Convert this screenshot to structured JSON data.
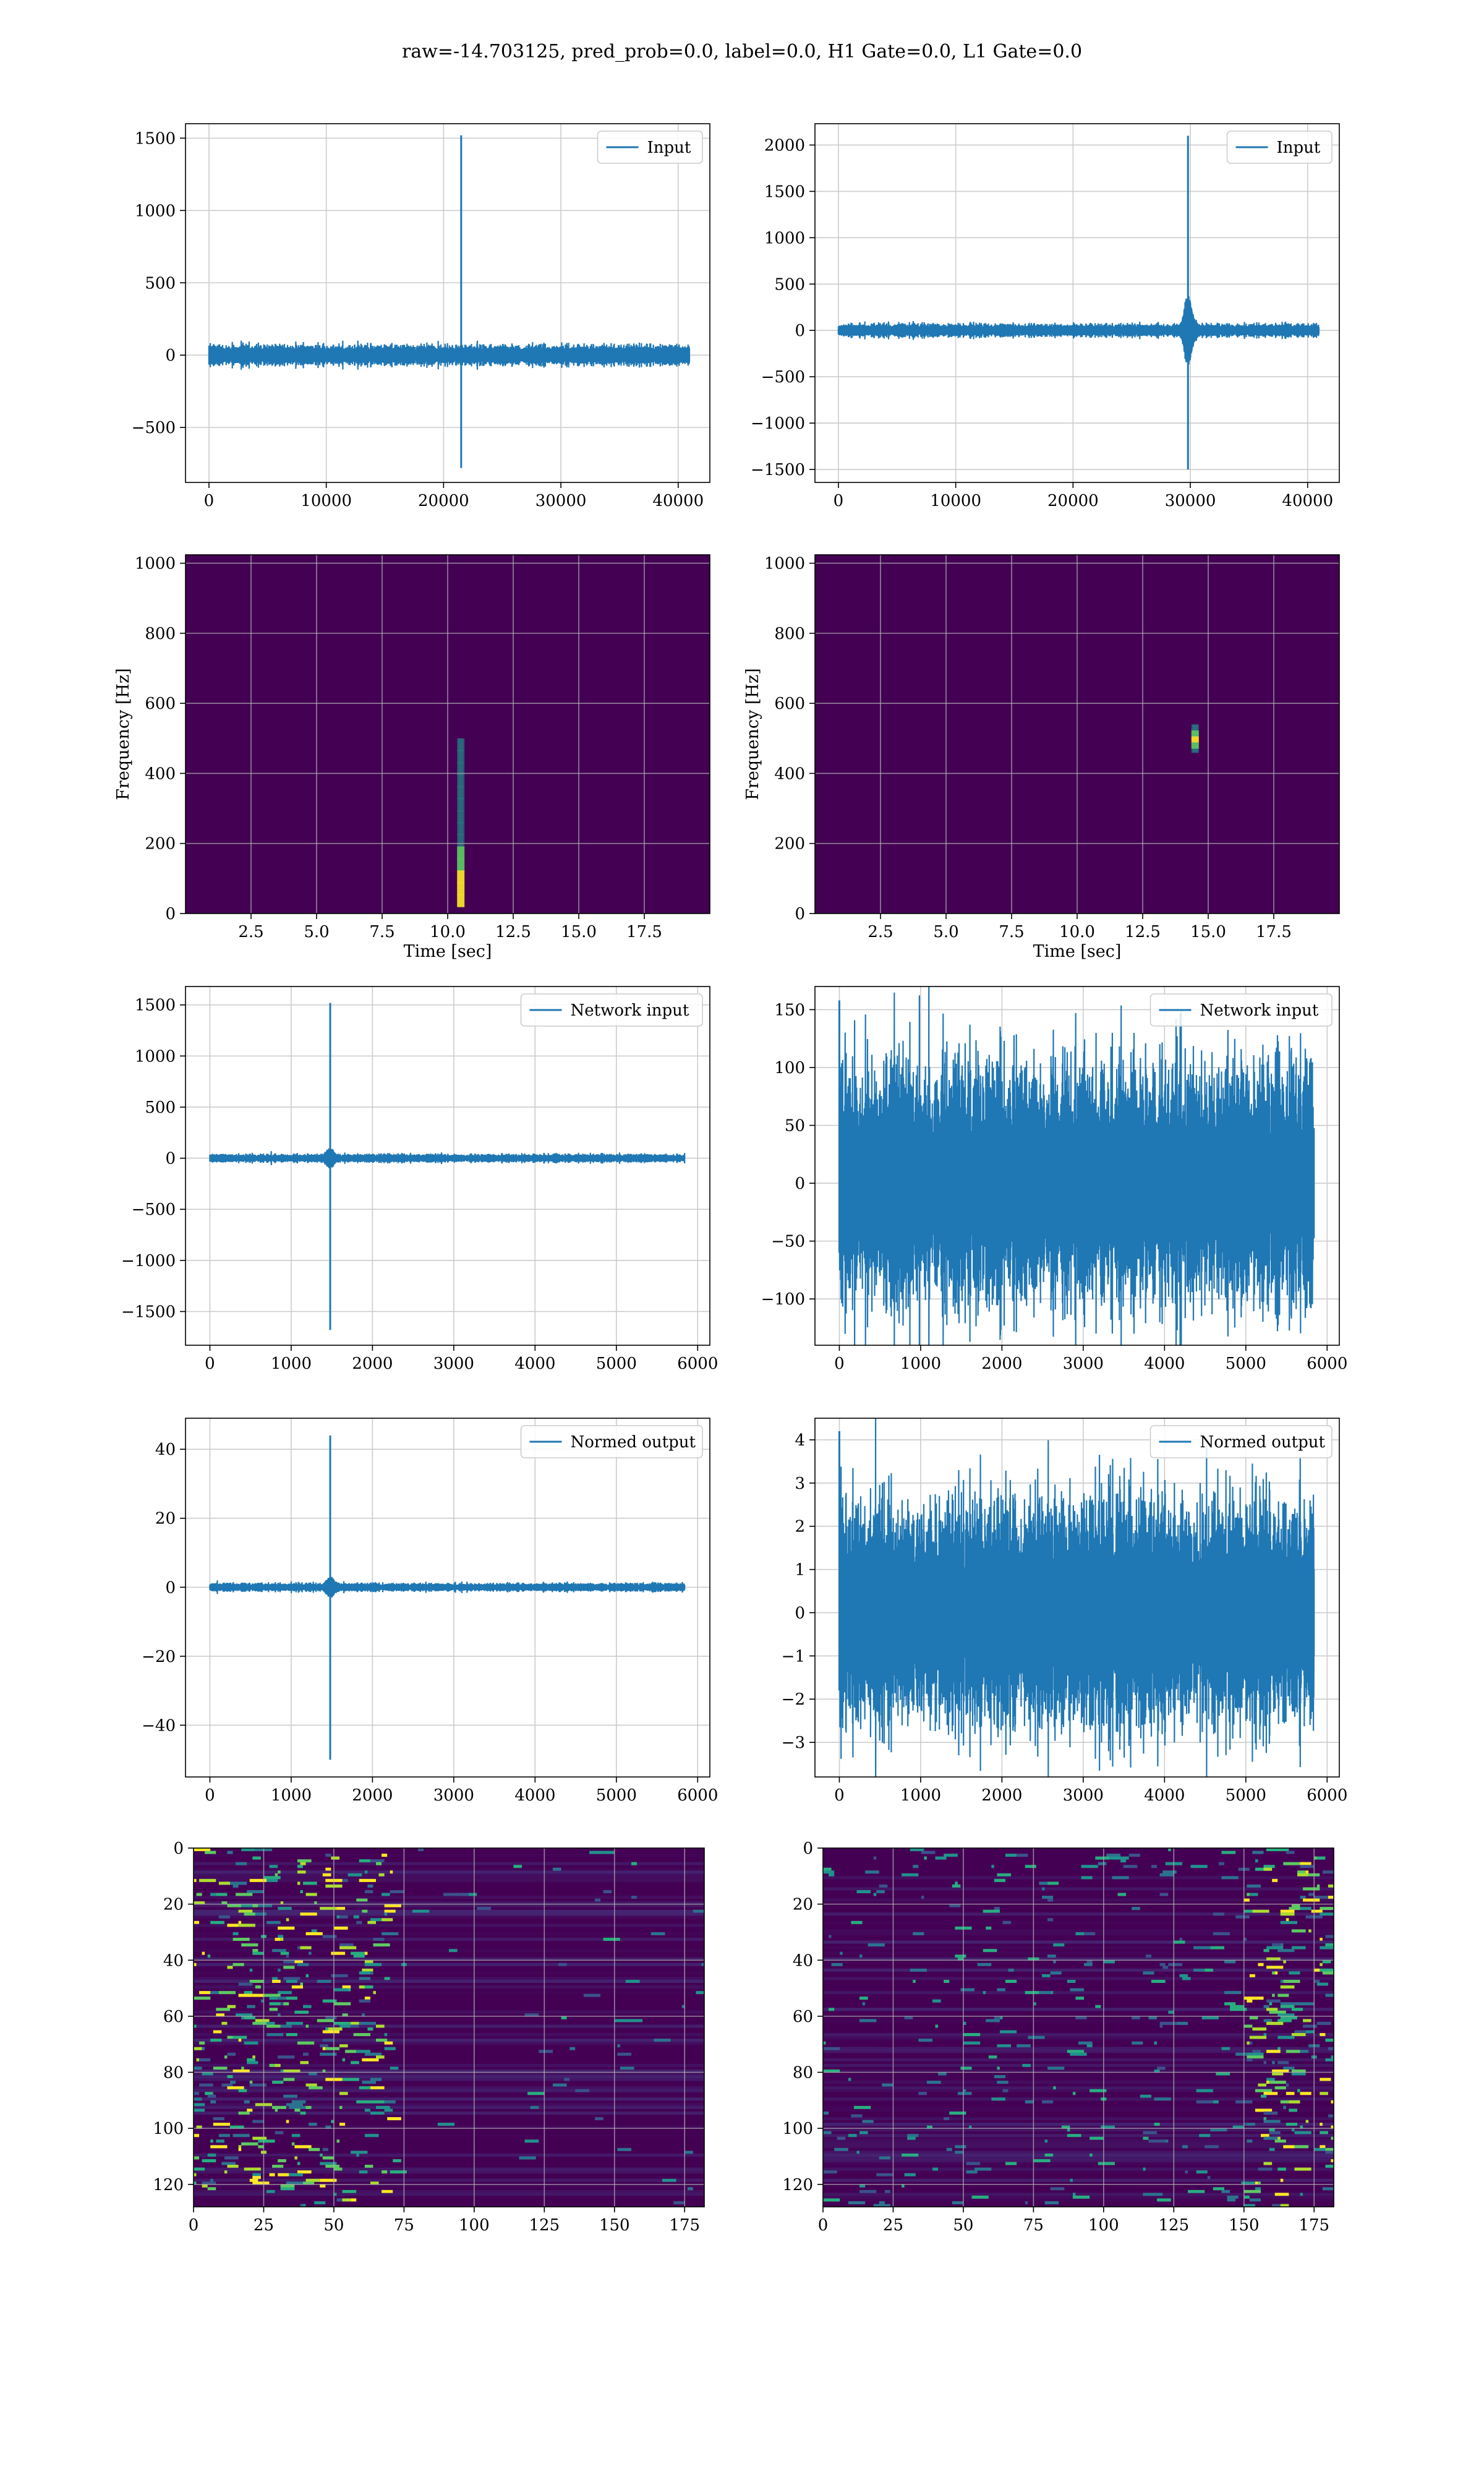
{
  "suptitle": "raw=-14.703125, pred_prob=0.0, label=0.0, H1 Gate=0.0, L1 Gate=0.0",
  "colors": {
    "line": "#1f77b4",
    "grid": "#cccccc",
    "viridis_bg": "#440154",
    "viridis_mid": "#21918c",
    "viridis_hi": "#5ec962",
    "viridis_top": "#fde725"
  },
  "chart_data": [
    {
      "id": "input-h1",
      "type": "line",
      "legend": "Input",
      "legend_loc": "upper right",
      "xlim": [
        -2000,
        42700
      ],
      "ylim": [
        -880,
        1600
      ],
      "xticks": [
        0,
        10000,
        20000,
        30000,
        40000
      ],
      "xticklabels": [
        "0",
        "10000",
        "20000",
        "30000",
        "40000"
      ],
      "yticks": [
        -500,
        0,
        500,
        1000,
        1500
      ],
      "yticklabels": [
        "−500",
        "0",
        "500",
        "1000",
        "1500"
      ],
      "xlabel": "",
      "ylabel": "",
      "signal": {
        "n": 40960,
        "noise": 35,
        "spike_x": 21500,
        "spike_max": 1520,
        "spike_min": -780,
        "bump": 0
      }
    },
    {
      "id": "input-l1",
      "type": "line",
      "legend": "Input",
      "legend_loc": "upper right",
      "xlim": [
        -2000,
        42700
      ],
      "ylim": [
        -1640,
        2230
      ],
      "xticks": [
        0,
        10000,
        20000,
        30000,
        40000
      ],
      "xticklabels": [
        "0",
        "10000",
        "20000",
        "30000",
        "40000"
      ],
      "yticks": [
        -1500,
        -1000,
        -500,
        0,
        500,
        1000,
        1500,
        2000
      ],
      "yticklabels": [
        "−1500",
        "−1000",
        "−500",
        "0",
        "500",
        "1000",
        "1500",
        "2000"
      ],
      "xlabel": "",
      "ylabel": "",
      "signal": {
        "n": 40960,
        "noise": 35,
        "spike_x": 29800,
        "spike_max": 2100,
        "spike_min": -1500,
        "bump": 300
      }
    },
    {
      "id": "spectrogram-h1",
      "type": "heatmap",
      "xlim": [
        0,
        20
      ],
      "ylim": [
        0,
        1024
      ],
      "xticks": [
        2.5,
        5,
        7.5,
        10,
        12.5,
        15,
        17.5
      ],
      "xticklabels": [
        "2.5",
        "5.0",
        "7.5",
        "10.0",
        "12.5",
        "15.0",
        "17.5"
      ],
      "yticks": [
        0,
        200,
        400,
        600,
        800,
        1000
      ],
      "yticklabels": [
        "0",
        "200",
        "400",
        "600",
        "800",
        "1000"
      ],
      "xlabel": "Time [sec]",
      "ylabel": "Frequency [Hz]",
      "feature": {
        "t": 10.5,
        "f_low": 20,
        "f_high": 500,
        "peak_f": 70
      }
    },
    {
      "id": "spectrogram-l1",
      "type": "heatmap",
      "xlim": [
        0,
        20
      ],
      "ylim": [
        0,
        1024
      ],
      "xticks": [
        2.5,
        5,
        7.5,
        10,
        12.5,
        15,
        17.5
      ],
      "xticklabels": [
        "2.5",
        "5.0",
        "7.5",
        "10.0",
        "12.5",
        "15.0",
        "17.5"
      ],
      "yticks": [
        0,
        200,
        400,
        600,
        800,
        1000
      ],
      "yticklabels": [
        "0",
        "200",
        "400",
        "600",
        "800",
        "1000"
      ],
      "xlabel": "Time [sec]",
      "ylabel": "Frequency [Hz]",
      "feature": {
        "t": 14.5,
        "f_low": 460,
        "f_high": 540,
        "peak_f": 500
      }
    },
    {
      "id": "network-input-h1",
      "type": "line",
      "legend": "Network input",
      "legend_loc": "upper right",
      "xlim": [
        -300,
        6150
      ],
      "ylim": [
        -1830,
        1680
      ],
      "xticks": [
        0,
        1000,
        2000,
        3000,
        4000,
        5000,
        6000
      ],
      "xticklabels": [
        "0",
        "1000",
        "2000",
        "3000",
        "4000",
        "5000",
        "6000"
      ],
      "yticks": [
        -1500,
        -1000,
        -500,
        0,
        500,
        1000,
        1500
      ],
      "yticklabels": [
        "−1500",
        "−1000",
        "−500",
        "0",
        "500",
        "1000",
        "1500"
      ],
      "xlabel": "",
      "ylabel": "",
      "signal": {
        "n": 5840,
        "noise": 20,
        "spike_x": 1480,
        "spike_max": 1520,
        "spike_min": -1680,
        "bump": 60
      }
    },
    {
      "id": "network-input-l1",
      "type": "line",
      "legend": "Network input",
      "legend_loc": "upper right",
      "xlim": [
        -300,
        6150
      ],
      "ylim": [
        -140,
        170
      ],
      "xticks": [
        0,
        1000,
        2000,
        3000,
        4000,
        5000,
        6000
      ],
      "xticklabels": [
        "0",
        "1000",
        "2000",
        "3000",
        "4000",
        "5000",
        "6000"
      ],
      "yticks": [
        -100,
        -50,
        0,
        50,
        100,
        150
      ],
      "yticklabels": [
        "−100",
        "−50",
        "0",
        "50",
        "100",
        "150"
      ],
      "xlabel": "",
      "ylabel": "",
      "signal": {
        "n": 5840,
        "noise": 30,
        "spike_x": 0,
        "spike_max": 158,
        "spike_min": -60,
        "bump": 0,
        "dense": true
      }
    },
    {
      "id": "normed-output-h1",
      "type": "line",
      "legend": "Normed output",
      "legend_loc": "upper right",
      "xlim": [
        -300,
        6150
      ],
      "ylim": [
        -55,
        49
      ],
      "xticks": [
        0,
        1000,
        2000,
        3000,
        4000,
        5000,
        6000
      ],
      "xticklabels": [
        "0",
        "1000",
        "2000",
        "3000",
        "4000",
        "5000",
        "6000"
      ],
      "yticks": [
        -40,
        -20,
        0,
        20,
        40
      ],
      "yticklabels": [
        "−40",
        "−20",
        "0",
        "20",
        "40"
      ],
      "xlabel": "",
      "ylabel": "",
      "signal": {
        "n": 5840,
        "noise": 0.6,
        "spike_x": 1480,
        "spike_max": 44,
        "spike_min": -50,
        "bump": 2
      }
    },
    {
      "id": "normed-output-l1",
      "type": "line",
      "legend": "Normed output",
      "legend_loc": "upper right",
      "xlim": [
        -300,
        6150
      ],
      "ylim": [
        -3.8,
        4.5
      ],
      "xticks": [
        0,
        1000,
        2000,
        3000,
        4000,
        5000,
        6000
      ],
      "xticklabels": [
        "0",
        "1000",
        "2000",
        "3000",
        "4000",
        "5000",
        "6000"
      ],
      "yticks": [
        -3,
        -2,
        -1,
        0,
        1,
        2,
        3,
        4
      ],
      "yticklabels": [
        "−3",
        "−2",
        "−1",
        "0",
        "1",
        "2",
        "3",
        "4"
      ],
      "xlabel": "",
      "ylabel": "",
      "signal": {
        "n": 5840,
        "noise": 0.75,
        "spike_x": 0,
        "spike_max": 4.2,
        "spike_min": -1.8,
        "bump": 0,
        "dense": true
      }
    },
    {
      "id": "embedding-h1",
      "type": "heatmap",
      "xlim": [
        0,
        182
      ],
      "ylim": [
        128,
        0
      ],
      "xticks": [
        0,
        25,
        50,
        75,
        100,
        125,
        150,
        175
      ],
      "xticklabels": [
        "0",
        "25",
        "50",
        "75",
        "100",
        "125",
        "150",
        "175"
      ],
      "yticks": [
        0,
        20,
        40,
        60,
        80,
        100,
        120
      ],
      "yticklabels": [
        "0",
        "20",
        "40",
        "60",
        "80",
        "100",
        "120"
      ],
      "xlabel": "",
      "ylabel": "",
      "activity": {
        "focus_cols": [
          0,
          70
        ],
        "level": "high-left"
      }
    },
    {
      "id": "embedding-l1",
      "type": "heatmap",
      "xlim": [
        0,
        182
      ],
      "ylim": [
        128,
        0
      ],
      "xticks": [
        0,
        25,
        50,
        75,
        100,
        125,
        150,
        175
      ],
      "xticklabels": [
        "0",
        "25",
        "50",
        "75",
        "100",
        "125",
        "150",
        "175"
      ],
      "yticks": [
        0,
        20,
        40,
        60,
        80,
        100,
        120
      ],
      "yticklabels": [
        "0",
        "20",
        "40",
        "60",
        "80",
        "100",
        "120"
      ],
      "xlabel": "",
      "ylabel": "",
      "activity": {
        "focus_cols": [
          150,
          182
        ],
        "level": "spread"
      }
    }
  ]
}
